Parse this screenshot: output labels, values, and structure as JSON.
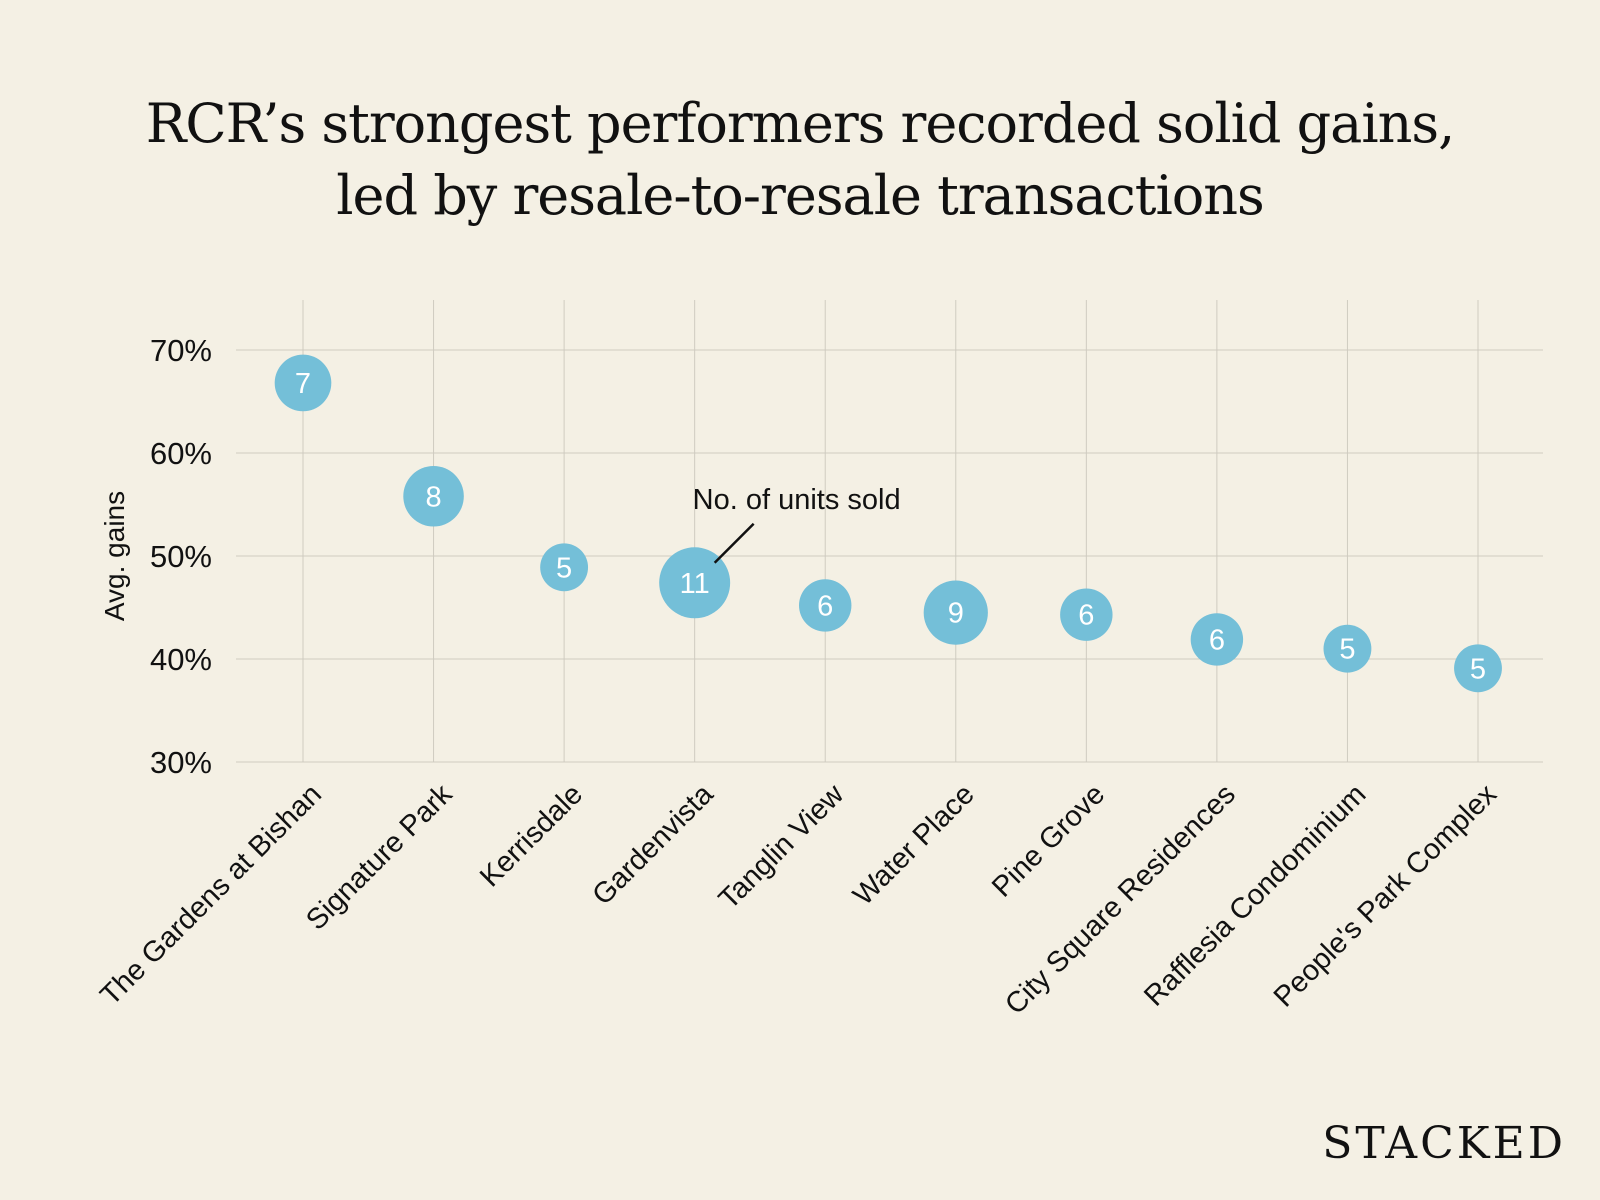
{
  "title_lines": [
    "RCR’s strongest performers recorded solid gains,",
    "led by resale-to-resale transactions"
  ],
  "brand": "STACKED",
  "colors": {
    "background": "#f4f0e4",
    "bubble": "#74bfd8",
    "bubble_text": "#ffffff",
    "grid": "#cfcbc0",
    "text": "#111111"
  },
  "chart_data": {
    "type": "scatter",
    "title": "RCR’s strongest performers recorded solid gains, led by resale-to-resale transactions",
    "xlabel": "",
    "ylabel": "Avg. gains",
    "ylim": [
      30,
      70
    ],
    "yticks": [
      70,
      60,
      50,
      40,
      30
    ],
    "ytick_labels": [
      "70%",
      "60%",
      "50%",
      "40%",
      "30%"
    ],
    "grid": true,
    "categories": [
      "The Gardens at Bishan",
      "Signature Park",
      "Kerrisdale",
      "Gardenvista",
      "Tanglin View",
      "Water Place",
      "Pine Grove",
      "City Square Residences",
      "Rafflesia Condominium",
      "People's Park Complex"
    ],
    "series": [
      {
        "name": "Avg. gains (%)",
        "values": [
          66.8,
          55.8,
          48.9,
          47.4,
          45.2,
          44.5,
          44.3,
          41.9,
          41.0,
          39.1
        ]
      },
      {
        "name": "No. of units sold",
        "values": [
          7,
          8,
          5,
          11,
          6,
          9,
          6,
          6,
          5,
          5
        ]
      }
    ],
    "annotations": [
      {
        "text": "No. of units sold",
        "points_to": "Gardenvista"
      }
    ]
  }
}
